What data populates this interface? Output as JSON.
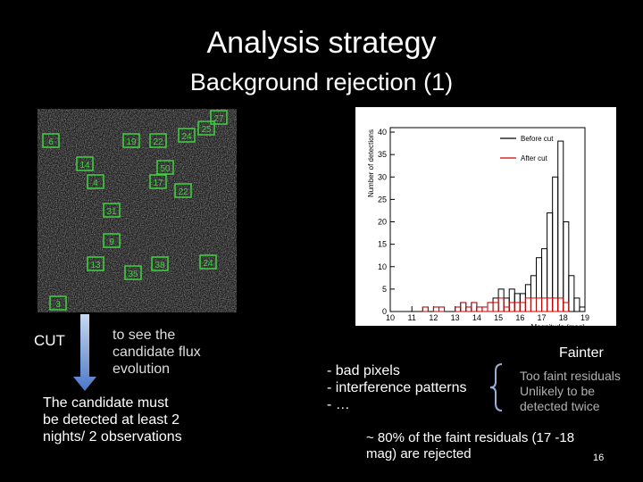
{
  "header": {
    "title": "Analysis strategy",
    "subtitle": "Background rejection (1)"
  },
  "field_image": {
    "labels": [
      "27",
      "25",
      "24",
      "22",
      "14",
      "6",
      "50",
      "19",
      "17",
      "31",
      "22",
      "4",
      "35",
      "38",
      "13",
      "24",
      "9",
      "3"
    ]
  },
  "histogram": {
    "type": "histogram",
    "x_label": "Magnitude (mag)",
    "y_label": "Number of detections",
    "bins": [
      10,
      10.25,
      10.5,
      10.75,
      11,
      11.25,
      11.5,
      11.75,
      12,
      12.25,
      12.5,
      12.75,
      13,
      13.25,
      13.5,
      13.75,
      14,
      14.25,
      14.5,
      14.75,
      15,
      15.25,
      15.5,
      15.75,
      16,
      16.25,
      16.5,
      16.75,
      17,
      17.25,
      17.5,
      17.75,
      18,
      18.25,
      18.5,
      18.75,
      19
    ],
    "xlim": [
      10,
      19
    ],
    "ylim": [
      0,
      41
    ],
    "xticks": [
      10,
      11,
      12,
      13,
      14,
      15,
      16,
      17,
      18,
      19
    ],
    "yticks": [
      0,
      5,
      10,
      15,
      20,
      25,
      30,
      35,
      40
    ],
    "series": [
      {
        "name": "Before cut",
        "color": "#000000",
        "values": [
          0,
          0,
          0,
          0,
          0,
          0,
          1,
          0,
          1,
          1,
          0,
          0,
          1,
          2,
          1,
          2,
          1,
          1,
          2,
          3,
          5,
          3,
          5,
          4,
          4,
          6,
          8,
          12,
          14,
          22,
          30,
          38,
          20,
          8,
          3,
          1
        ]
      },
      {
        "name": "After cut",
        "color": "#cc0000",
        "values": [
          0,
          0,
          0,
          0,
          0,
          0,
          1,
          0,
          1,
          1,
          0,
          0,
          1,
          2,
          1,
          2,
          1,
          1,
          2,
          2,
          3,
          1,
          2,
          2,
          2,
          3,
          3,
          3,
          3,
          3,
          3,
          3,
          2,
          0,
          0,
          0
        ]
      }
    ]
  },
  "left_notes": {
    "cut_label": "CUT",
    "arrow_note": "to see the candidate flux evolution",
    "requirement": "The candidate must be detected at least 2 nights/ 2 observations"
  },
  "right_notes": {
    "fainter": "Fainter",
    "causes": [
      "- bad pixels",
      "- interference patterns",
      "- …"
    ],
    "consequences": [
      "Too faint residuals",
      "Unlikely to be detected twice"
    ],
    "conclusion": "~ 80% of the faint residuals (17 -18 mag) are rejected",
    "page_number": "16"
  }
}
